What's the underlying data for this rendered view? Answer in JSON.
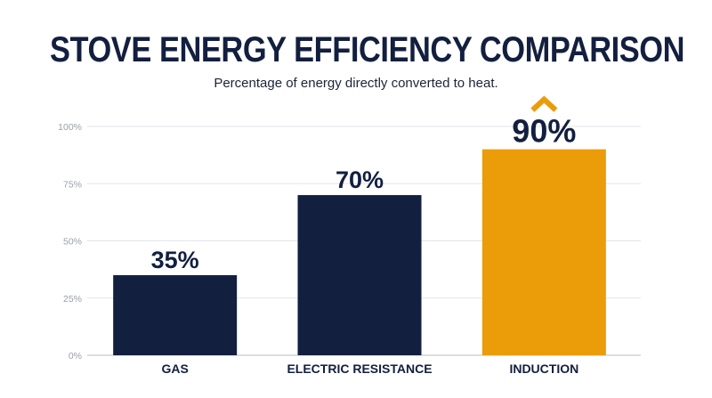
{
  "chart_data": {
    "type": "bar",
    "title": "STOVE ENERGY EFFICIENCY COMPARISON",
    "subtitle": "Percentage of energy directly converted to heat.",
    "categories": [
      "GAS",
      "ELECTRIC RESISTANCE",
      "INDUCTION"
    ],
    "values": [
      35,
      70,
      90
    ],
    "data_labels": [
      "35%",
      "70%",
      "90%"
    ],
    "ylim": [
      0,
      100
    ],
    "yticks": [
      0,
      25,
      50,
      75,
      100
    ],
    "ytick_labels": [
      "0%",
      "25%",
      "50%",
      "75%",
      "100%"
    ],
    "xlabel": "",
    "ylabel": "",
    "grid": true,
    "legend": "none",
    "colors": {
      "bar": "#131f3f",
      "highlight": "#eb9c09",
      "grid": "#e3e5e8",
      "text": "#131f3f"
    },
    "highlight_index": 2,
    "highlight_icon": "chevron-up-icon"
  }
}
